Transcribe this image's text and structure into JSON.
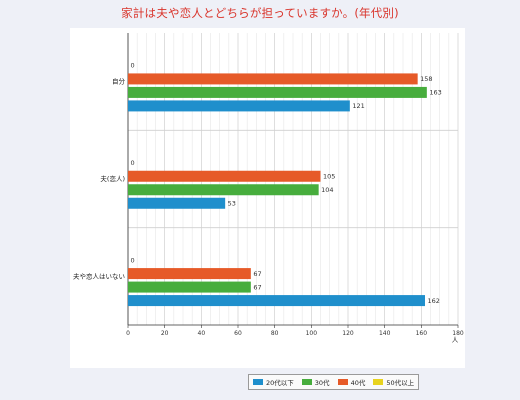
{
  "chart_data": {
    "type": "bar",
    "orientation": "horizontal",
    "title": "家計は夫や恋人とどちらが担っていますか。(年代別)",
    "xlabel": "人",
    "ylabel": "",
    "xlim": [
      0,
      180
    ],
    "x_ticks": [
      0,
      20,
      40,
      60,
      80,
      100,
      120,
      140,
      160,
      180
    ],
    "grid": true,
    "legend_position": "bottom",
    "categories": [
      "自分",
      "夫(恋人)",
      "夫や恋人はいない"
    ],
    "series": [
      {
        "name": "20代以下",
        "color": "#1f8fcc",
        "values": [
          121,
          53,
          162
        ]
      },
      {
        "name": "30代",
        "color": "#47ad3d",
        "values": [
          163,
          104,
          67
        ]
      },
      {
        "name": "40代",
        "color": "#e65a28",
        "values": [
          158,
          105,
          67
        ]
      },
      {
        "name": "50代以上",
        "color": "#e8d31e",
        "values": [
          0,
          0,
          0
        ]
      }
    ]
  }
}
